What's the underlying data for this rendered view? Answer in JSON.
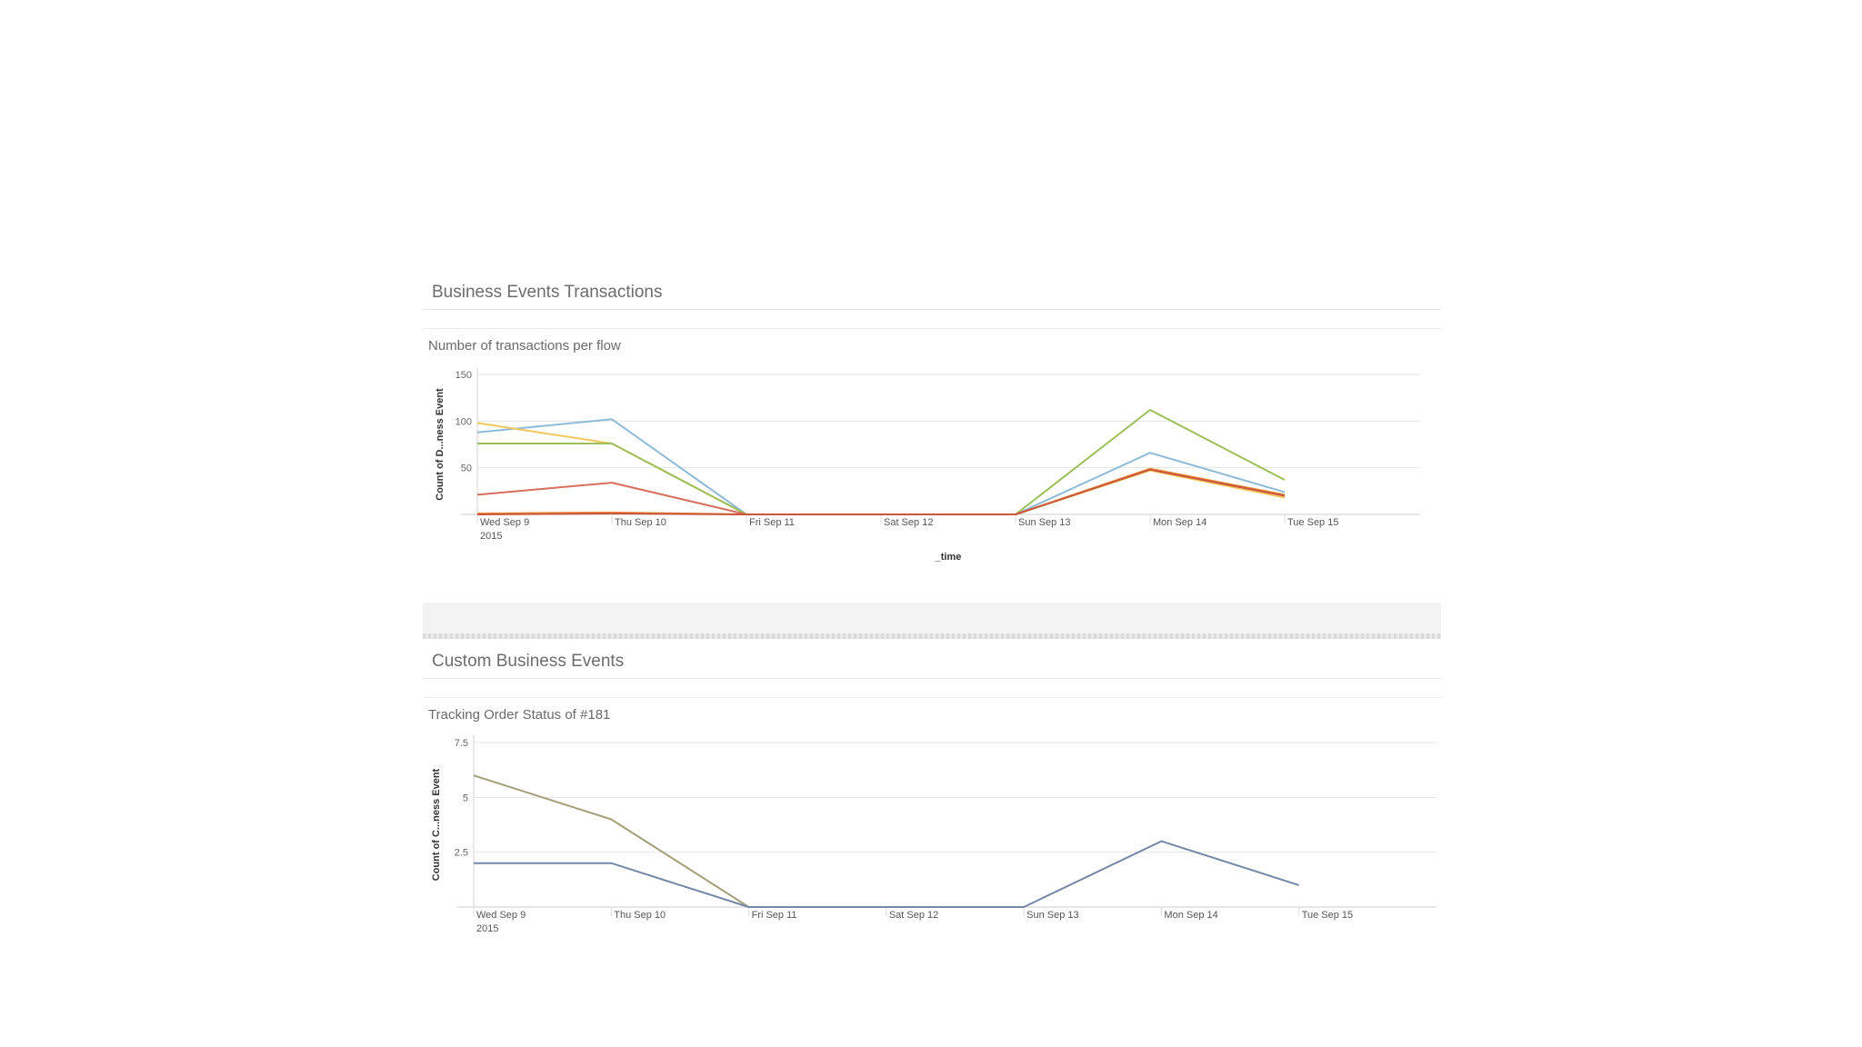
{
  "panels": [
    {
      "title": "Business Events Transactions"
    },
    {
      "title": "Custom Business Events"
    }
  ],
  "chart_data": [
    {
      "type": "line",
      "title": "Number of transactions per flow",
      "xlabel": "_time",
      "ylabel": "Count of D...ness Event",
      "categories": [
        "Wed Sep 9",
        "Thu Sep 10",
        "Fri Sep 11",
        "Sat Sep 12",
        "Sun Sep 13",
        "Mon Sep 14",
        "Tue Sep 15"
      ],
      "first_tick_year": "2015",
      "ylim": [
        0,
        150
      ],
      "yticks": [
        "50",
        "100",
        "150"
      ],
      "grid": true,
      "series": [
        {
          "color": "#8fbbd9",
          "values": [
            88,
            102,
            0,
            0,
            0,
            66,
            24
          ]
        },
        {
          "color": "#f2c85e",
          "values": [
            98,
            76,
            0,
            0,
            0,
            47,
            18
          ]
        },
        {
          "color": "#9cbf5a",
          "values": [
            76,
            76,
            0,
            0,
            0,
            112,
            37
          ]
        },
        {
          "color": "#d96f5f",
          "values": [
            21,
            34,
            0,
            0,
            0,
            null,
            null
          ]
        },
        {
          "color": "#f08c3c",
          "values": [
            1,
            2,
            0,
            0,
            0,
            49,
            21
          ]
        },
        {
          "color": "#c9573c",
          "values": [
            0,
            1,
            0,
            0,
            0,
            48,
            20
          ]
        }
      ]
    },
    {
      "type": "line",
      "title": "Tracking Order Status of #181",
      "xlabel": "",
      "ylabel": "Count of C...ness Event",
      "categories": [
        "Wed Sep 9",
        "Thu Sep 10",
        "Fri Sep 11",
        "Sat Sep 12",
        "Sun Sep 13",
        "Mon Sep 14",
        "Tue Sep 15"
      ],
      "first_tick_year": "2015",
      "ylim": [
        0,
        7.5
      ],
      "yticks": [
        "2.5",
        "5",
        "7.5"
      ],
      "grid": true,
      "series": [
        {
          "color": "#a3a07a",
          "values": [
            6,
            4,
            0,
            0,
            0,
            null,
            null
          ]
        },
        {
          "color": "#7688a8",
          "values": [
            2,
            2,
            0,
            0,
            0,
            3,
            1
          ]
        }
      ]
    }
  ]
}
